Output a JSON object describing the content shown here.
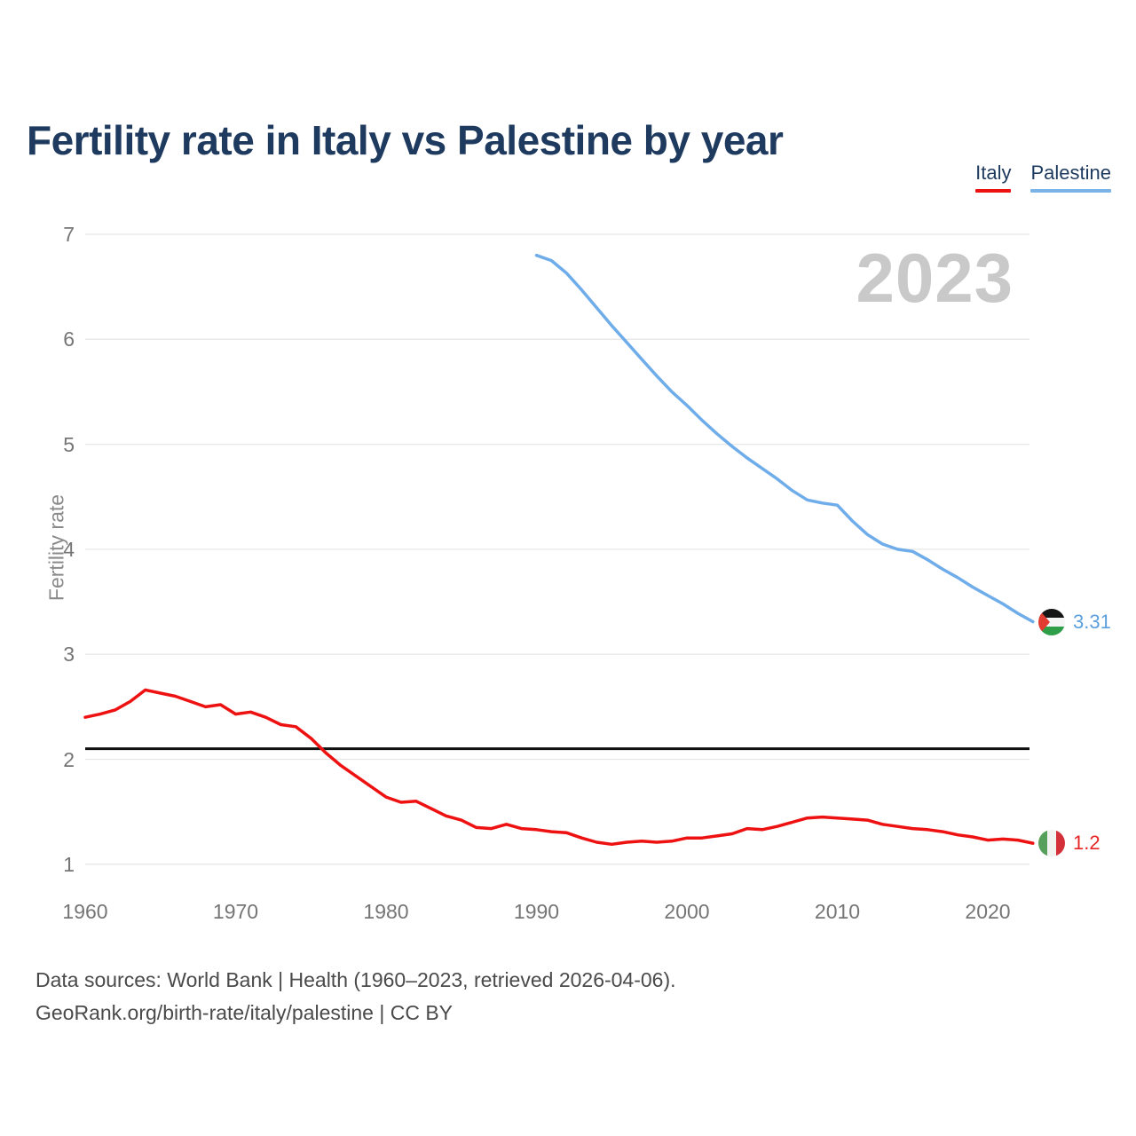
{
  "title": "Fertility rate in Italy vs Palestine by year",
  "legend": {
    "items": [
      {
        "label": "Italy",
        "color": "#ee1111"
      },
      {
        "label": "Palestine",
        "color": "#7ab3e8"
      }
    ]
  },
  "watermark": {
    "text": "2023",
    "color": "#c9c9c9"
  },
  "reference_line": {
    "value": 2.1,
    "color": "#111111"
  },
  "end_labels": [
    {
      "series": "Palestine",
      "value": "3.31",
      "color": "#5b9fde",
      "flag_icon": "palestine-flag-icon"
    },
    {
      "series": "Italy",
      "value": "1.2",
      "color": "#e82525",
      "flag_icon": "italy-flag-icon"
    }
  ],
  "footer": {
    "line1": "Data sources: World Bank | Health (1960–2023, retrieved 2026-04-06).",
    "line2": "GeoRank.org/birth-rate/italy/palestine | CC BY"
  },
  "chart_data": {
    "type": "line",
    "title": "Fertility rate in Italy vs Palestine by year",
    "xlabel": "",
    "ylabel": "Fertility rate",
    "xlim": [
      1960,
      2023
    ],
    "ylim": [
      1,
      7
    ],
    "grid": true,
    "legend_position": "top-right",
    "y_ticks": [
      7,
      6,
      5,
      4,
      3,
      2,
      1
    ],
    "x_ticks": [
      1960,
      1970,
      1980,
      1990,
      2000,
      2010,
      2020
    ],
    "reference_line_y": 2.1,
    "series": [
      {
        "name": "Italy",
        "color": "#ee1111",
        "years": [
          1960,
          1961,
          1962,
          1963,
          1964,
          1965,
          1966,
          1967,
          1968,
          1969,
          1970,
          1971,
          1972,
          1973,
          1974,
          1975,
          1976,
          1977,
          1978,
          1979,
          1980,
          1981,
          1982,
          1983,
          1984,
          1985,
          1986,
          1987,
          1988,
          1989,
          1990,
          1991,
          1992,
          1993,
          1994,
          1995,
          1996,
          1997,
          1998,
          1999,
          2000,
          2001,
          2002,
          2003,
          2004,
          2005,
          2006,
          2007,
          2008,
          2009,
          2010,
          2011,
          2012,
          2013,
          2014,
          2015,
          2016,
          2017,
          2018,
          2019,
          2020,
          2021,
          2022,
          2023
        ],
        "values": [
          2.4,
          2.43,
          2.47,
          2.55,
          2.66,
          2.63,
          2.6,
          2.55,
          2.5,
          2.52,
          2.43,
          2.45,
          2.4,
          2.33,
          2.31,
          2.2,
          2.06,
          1.94,
          1.84,
          1.74,
          1.64,
          1.59,
          1.6,
          1.53,
          1.46,
          1.42,
          1.35,
          1.34,
          1.38,
          1.34,
          1.33,
          1.31,
          1.3,
          1.25,
          1.21,
          1.19,
          1.21,
          1.22,
          1.21,
          1.22,
          1.25,
          1.25,
          1.27,
          1.29,
          1.34,
          1.33,
          1.36,
          1.4,
          1.44,
          1.45,
          1.44,
          1.43,
          1.42,
          1.38,
          1.36,
          1.34,
          1.33,
          1.31,
          1.28,
          1.26,
          1.23,
          1.24,
          1.23,
          1.2
        ]
      },
      {
        "name": "Palestine",
        "color": "#6fadea",
        "years": [
          1990,
          1991,
          1992,
          1993,
          1994,
          1995,
          1996,
          1997,
          1998,
          1999,
          2000,
          2001,
          2002,
          2003,
          2004,
          2005,
          2006,
          2007,
          2008,
          2009,
          2010,
          2011,
          2012,
          2013,
          2014,
          2015,
          2016,
          2017,
          2018,
          2019,
          2020,
          2021,
          2022,
          2023
        ],
        "values": [
          6.8,
          6.75,
          6.63,
          6.47,
          6.3,
          6.13,
          5.97,
          5.81,
          5.65,
          5.5,
          5.37,
          5.23,
          5.1,
          4.98,
          4.87,
          4.77,
          4.67,
          4.56,
          4.47,
          4.44,
          4.42,
          4.27,
          4.14,
          4.05,
          4.0,
          3.98,
          3.9,
          3.81,
          3.73,
          3.64,
          3.56,
          3.48,
          3.39,
          3.31
        ]
      }
    ]
  }
}
